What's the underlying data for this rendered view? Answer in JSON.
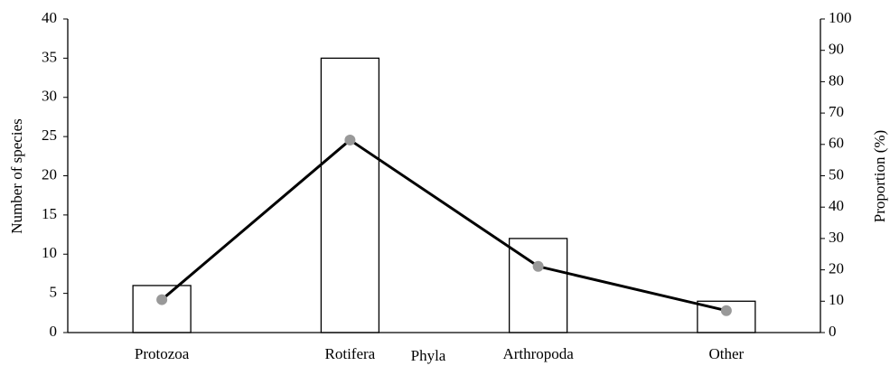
{
  "chart_data": {
    "type": "bar",
    "x_label": "Phyla",
    "y_label": "Number of species",
    "y2_label": "Proportion (%)",
    "categories": [
      "Protozoa",
      "Rotifera",
      "Arthropoda",
      "Other"
    ],
    "series": [
      {
        "type": "bar",
        "color": "#ffffff",
        "values": [
          6,
          35,
          12,
          4
        ]
      },
      {
        "type": "line",
        "axis": "y2",
        "color": "#000000",
        "marker_color": "#999999",
        "values": [
          10.5,
          61.4,
          21.1,
          7.0
        ]
      }
    ],
    "ylim": [
      0,
      40
    ],
    "yticks": [
      0,
      5,
      10,
      15,
      20,
      25,
      30,
      35,
      40
    ],
    "y2lim": [
      0,
      100
    ],
    "y2ticks": [
      0,
      10,
      20,
      30,
      40,
      50,
      60,
      70,
      80,
      90,
      100
    ],
    "grid": false
  }
}
